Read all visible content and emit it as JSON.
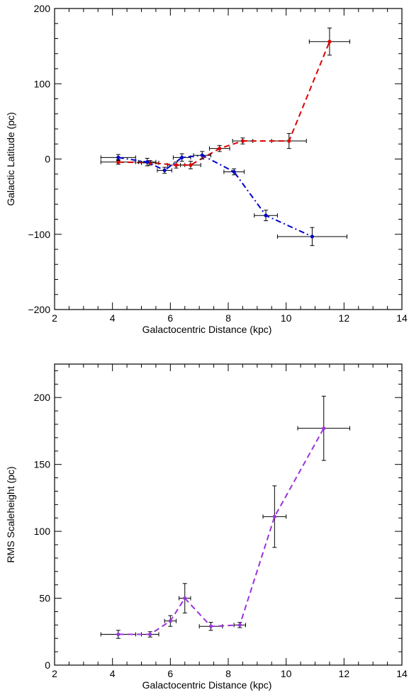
{
  "chart_data": [
    {
      "type": "line",
      "title": "",
      "xlabel": "Galactocentric Distance (kpc)",
      "ylabel": "Galactic Latitude (pc)",
      "xlim": [
        2,
        14
      ],
      "ylim": [
        -200,
        200
      ],
      "xticks": [
        2,
        4,
        6,
        8,
        10,
        12,
        14
      ],
      "yticks": [
        -200,
        -100,
        0,
        100,
        200
      ],
      "xtick_labels": [
        "2",
        "4",
        "6",
        "8",
        "10",
        "12",
        "14"
      ],
      "ytick_labels": [
        "−200",
        "−100",
        "0",
        "100",
        "200"
      ],
      "grid": false,
      "series": [
        {
          "color": "#dd0000",
          "dash": "dashed",
          "points": [
            {
              "x": 4.2,
              "y": -4,
              "xerr": 0.6,
              "yerr": 3
            },
            {
              "x": 5.3,
              "y": -5,
              "xerr": 0.3,
              "yerr": 3
            },
            {
              "x": 6.2,
              "y": -8,
              "xerr": 0.3,
              "yerr": 4
            },
            {
              "x": 6.7,
              "y": -8,
              "xerr": 0.35,
              "yerr": 5
            },
            {
              "x": 7.7,
              "y": 14,
              "xerr": 0.35,
              "yerr": 4
            },
            {
              "x": 8.5,
              "y": 24,
              "xerr": 0.35,
              "yerr": 4
            },
            {
              "x": 10.1,
              "y": 24,
              "xerr": 0.6,
              "yerr": 10
            },
            {
              "x": 11.5,
              "y": 156,
              "xerr": 0.7,
              "yerr": 18
            }
          ]
        },
        {
          "color": "#0000cc",
          "dash": "dashdot",
          "points": [
            {
              "x": 4.2,
              "y": 2,
              "xerr": 0.6,
              "yerr": 4
            },
            {
              "x": 5.2,
              "y": -4,
              "xerr": 0.3,
              "yerr": 5
            },
            {
              "x": 5.8,
              "y": -15,
              "xerr": 0.25,
              "yerr": 4
            },
            {
              "x": 6.4,
              "y": 2,
              "xerr": 0.3,
              "yerr": 5
            },
            {
              "x": 7.1,
              "y": 5,
              "xerr": 0.3,
              "yerr": 5
            },
            {
              "x": 8.2,
              "y": -17,
              "xerr": 0.35,
              "yerr": 4
            },
            {
              "x": 9.3,
              "y": -75,
              "xerr": 0.4,
              "yerr": 7
            },
            {
              "x": 10.9,
              "y": -103,
              "xerr": 1.2,
              "yerr": 12
            }
          ]
        }
      ]
    },
    {
      "type": "line",
      "title": "",
      "xlabel": "Galactocentric Distance (kpc)",
      "ylabel": "RMS Scaleheight (pc)",
      "xlim": [
        2,
        14
      ],
      "ylim": [
        0,
        225
      ],
      "xticks": [
        2,
        4,
        6,
        8,
        10,
        12,
        14
      ],
      "yticks": [
        0,
        50,
        100,
        150,
        200
      ],
      "xtick_labels": [
        "2",
        "4",
        "6",
        "8",
        "10",
        "12",
        "14"
      ],
      "ytick_labels": [
        "0",
        "50",
        "100",
        "150",
        "200"
      ],
      "grid": false,
      "series": [
        {
          "color": "#9933dd",
          "dash": "dashed",
          "points": [
            {
              "x": 4.2,
              "y": 23,
              "xerr": 0.6,
              "yerr": 3
            },
            {
              "x": 5.3,
              "y": 23,
              "xerr": 0.3,
              "yerr": 2
            },
            {
              "x": 6.0,
              "y": 33,
              "xerr": 0.2,
              "yerr": 4
            },
            {
              "x": 6.5,
              "y": 50,
              "xerr": 0.2,
              "yerr": 11
            },
            {
              "x": 7.4,
              "y": 29,
              "xerr": 0.4,
              "yerr": 3
            },
            {
              "x": 8.4,
              "y": 30,
              "xerr": 0.2,
              "yerr": 2
            },
            {
              "x": 9.6,
              "y": 111,
              "xerr": 0.4,
              "yerr": 23
            },
            {
              "x": 11.3,
              "y": 177,
              "xerr": 0.9,
              "yerr": 24
            }
          ]
        }
      ]
    }
  ]
}
